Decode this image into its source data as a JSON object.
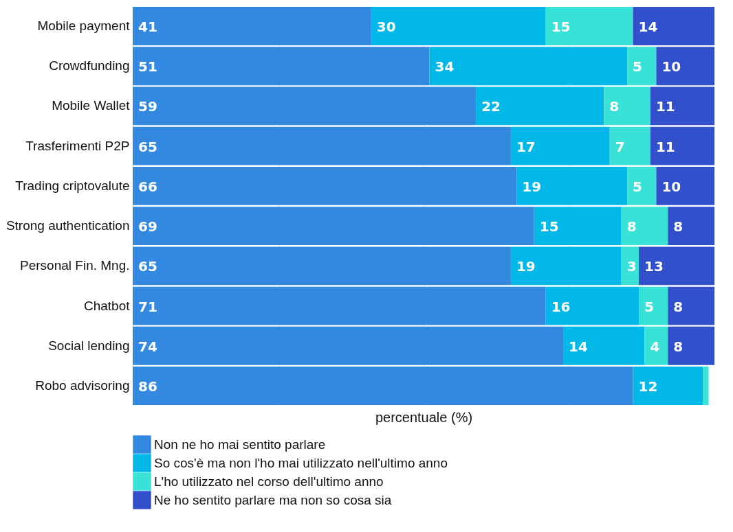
{
  "chart_data": {
    "type": "bar",
    "orientation": "horizontal",
    "stacked": true,
    "xlabel": "percentuale (%)",
    "categories": [
      "Mobile payment",
      "Crowdfunding",
      "Mobile Wallet",
      "Trasferimenti P2P",
      "Trading criptovalute",
      "Strong authentication",
      "Personal Fin. Mng.",
      "Chatbot",
      "Social lending",
      "Robo advisoring"
    ],
    "series": [
      {
        "name": "Non ne ho mai sentito parlare",
        "color": "#3388e0",
        "values": [
          41,
          51,
          59,
          65,
          66,
          69,
          65,
          71,
          74,
          86
        ],
        "value_labels": [
          "41",
          "51",
          "59",
          "65",
          "66",
          "69",
          "65",
          "71",
          "74",
          "86"
        ]
      },
      {
        "name": "So cos'è ma non l'ho mai utilizzato nell'ultimo anno",
        "color": "#02b8e8",
        "values": [
          30,
          34,
          22,
          17,
          19,
          15,
          19,
          16,
          14,
          12
        ],
        "value_labels": [
          "30",
          "34",
          "22",
          "17",
          "19",
          "15",
          "19",
          "16",
          "14",
          "12"
        ]
      },
      {
        "name": "L'ho utilizzato nel corso dell'ultimo anno",
        "color": "#38e2d6",
        "values": [
          15,
          5,
          8,
          7,
          5,
          8,
          3,
          5,
          4,
          1
        ],
        "value_labels": [
          "15",
          "5",
          "8",
          "7",
          "5",
          "8",
          "3",
          "5",
          "4",
          null
        ]
      },
      {
        "name": "Ne ho sentito parlare ma non so cosa sia",
        "color": "#3350cc",
        "values": [
          14,
          10,
          11,
          11,
          10,
          8,
          13,
          8,
          8,
          null
        ],
        "value_labels": [
          "14",
          "10",
          "11",
          "11",
          "10",
          "8",
          "13",
          "8",
          "8",
          null
        ]
      }
    ],
    "xlim": [
      0,
      100
    ],
    "xticks": [
      {
        "value": 0,
        "label": null
      },
      {
        "value": 25,
        "label": null
      },
      {
        "value": 50,
        "label": null
      },
      {
        "value": 75,
        "label": null
      },
      {
        "value": 100,
        "label": null
      }
    ],
    "grid": "x",
    "tick_labels": "y",
    "legend": "bottom"
  }
}
